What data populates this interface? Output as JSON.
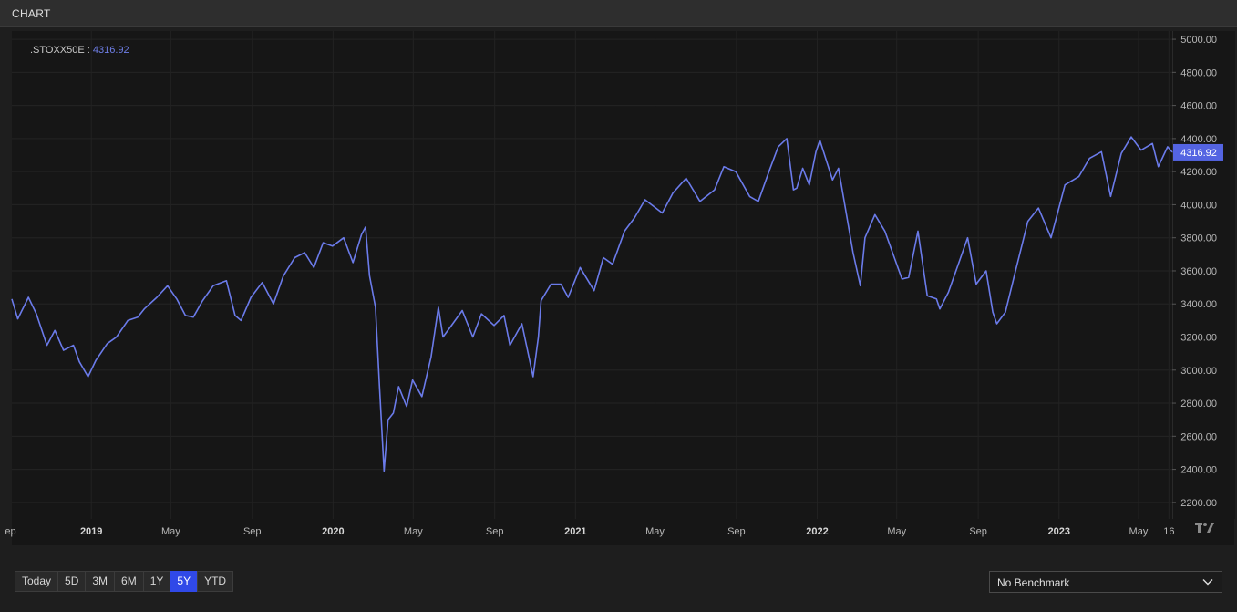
{
  "header": {
    "title": "CHART"
  },
  "legend": {
    "symbol": ".STOXX50E :",
    "value": "4316.92"
  },
  "last_price_label": "4316.92",
  "controls": {
    "ranges": [
      {
        "label": "Today",
        "active": false
      },
      {
        "label": "5D",
        "active": false
      },
      {
        "label": "3M",
        "active": false
      },
      {
        "label": "6M",
        "active": false
      },
      {
        "label": "1Y",
        "active": false
      },
      {
        "label": "5Y",
        "active": true
      },
      {
        "label": "YTD",
        "active": false
      }
    ],
    "benchmark": "No Benchmark"
  },
  "colors": {
    "line": "#6b7bea",
    "accent": "#3049e8",
    "price_tag": "#5464e2"
  },
  "icons": {
    "logo": "tradingview-logo-icon",
    "dropdown": "chevron-down-icon"
  },
  "chart_data": {
    "type": "line",
    "ylim": [
      2100,
      5050
    ],
    "yticks": [
      "5000.00",
      "4800.00",
      "4600.00",
      "4400.00",
      "4200.00",
      "4000.00",
      "3800.00",
      "3600.00",
      "3400.00",
      "3200.00",
      "3000.00",
      "2800.00",
      "2600.00",
      "2400.00",
      "2200.00"
    ],
    "x_range": [
      "2018-09-03",
      "2023-06-21"
    ],
    "xticks": [
      {
        "date": "2018-09-01",
        "label": "ep",
        "bold": false
      },
      {
        "date": "2019-01-01",
        "label": "2019",
        "bold": true
      },
      {
        "date": "2019-05-01",
        "label": "May",
        "bold": false
      },
      {
        "date": "2019-09-01",
        "label": "Sep",
        "bold": false
      },
      {
        "date": "2020-01-01",
        "label": "2020",
        "bold": true
      },
      {
        "date": "2020-05-01",
        "label": "May",
        "bold": false
      },
      {
        "date": "2020-09-01",
        "label": "Sep",
        "bold": false
      },
      {
        "date": "2021-01-01",
        "label": "2021",
        "bold": true
      },
      {
        "date": "2021-05-01",
        "label": "May",
        "bold": false
      },
      {
        "date": "2021-09-01",
        "label": "Sep",
        "bold": false
      },
      {
        "date": "2022-01-01",
        "label": "2022",
        "bold": true
      },
      {
        "date": "2022-05-01",
        "label": "May",
        "bold": false
      },
      {
        "date": "2022-09-01",
        "label": "Sep",
        "bold": false
      },
      {
        "date": "2023-01-01",
        "label": "2023",
        "bold": true
      },
      {
        "date": "2023-05-01",
        "label": "May",
        "bold": false
      },
      {
        "date": "2023-06-16",
        "label": "16",
        "bold": false
      }
    ],
    "series": [
      {
        "points": [
          [
            "2018-09-03",
            3430
          ],
          [
            "2018-09-12",
            3310
          ],
          [
            "2018-09-28",
            3440
          ],
          [
            "2018-10-10",
            3340
          ],
          [
            "2018-10-26",
            3150
          ],
          [
            "2018-11-07",
            3240
          ],
          [
            "2018-11-20",
            3120
          ],
          [
            "2018-12-05",
            3150
          ],
          [
            "2018-12-14",
            3050
          ],
          [
            "2018-12-27",
            2960
          ],
          [
            "2019-01-08",
            3060
          ],
          [
            "2019-01-25",
            3160
          ],
          [
            "2019-02-08",
            3200
          ],
          [
            "2019-02-25",
            3300
          ],
          [
            "2019-03-12",
            3320
          ],
          [
            "2019-03-22",
            3370
          ],
          [
            "2019-04-10",
            3440
          ],
          [
            "2019-04-26",
            3510
          ],
          [
            "2019-05-10",
            3430
          ],
          [
            "2019-05-23",
            3330
          ],
          [
            "2019-06-04",
            3320
          ],
          [
            "2019-06-18",
            3420
          ],
          [
            "2019-07-04",
            3510
          ],
          [
            "2019-07-24",
            3540
          ],
          [
            "2019-08-06",
            3330
          ],
          [
            "2019-08-15",
            3300
          ],
          [
            "2019-08-30",
            3440
          ],
          [
            "2019-09-16",
            3530
          ],
          [
            "2019-10-03",
            3400
          ],
          [
            "2019-10-18",
            3570
          ],
          [
            "2019-11-04",
            3680
          ],
          [
            "2019-11-19",
            3710
          ],
          [
            "2019-12-03",
            3620
          ],
          [
            "2019-12-17",
            3770
          ],
          [
            "2019-12-31",
            3750
          ],
          [
            "2020-01-17",
            3800
          ],
          [
            "2020-01-31",
            3650
          ],
          [
            "2020-02-13",
            3820
          ],
          [
            "2020-02-19",
            3865
          ],
          [
            "2020-02-25",
            3570
          ],
          [
            "2020-03-05",
            3380
          ],
          [
            "2020-03-11",
            2900
          ],
          [
            "2020-03-18",
            2390
          ],
          [
            "2020-03-24",
            2700
          ],
          [
            "2020-04-01",
            2740
          ],
          [
            "2020-04-09",
            2900
          ],
          [
            "2020-04-21",
            2780
          ],
          [
            "2020-04-30",
            2940
          ],
          [
            "2020-05-14",
            2840
          ],
          [
            "2020-05-28",
            3080
          ],
          [
            "2020-06-08",
            3380
          ],
          [
            "2020-06-15",
            3200
          ],
          [
            "2020-06-26",
            3260
          ],
          [
            "2020-07-14",
            3360
          ],
          [
            "2020-07-30",
            3200
          ],
          [
            "2020-08-12",
            3340
          ],
          [
            "2020-08-31",
            3270
          ],
          [
            "2020-09-15",
            3330
          ],
          [
            "2020-09-24",
            3150
          ],
          [
            "2020-10-12",
            3280
          ],
          [
            "2020-10-29",
            2960
          ],
          [
            "2020-11-06",
            3200
          ],
          [
            "2020-11-10",
            3420
          ],
          [
            "2020-11-25",
            3520
          ],
          [
            "2020-12-10",
            3520
          ],
          [
            "2020-12-21",
            3440
          ],
          [
            "2021-01-08",
            3620
          ],
          [
            "2021-01-29",
            3480
          ],
          [
            "2021-02-12",
            3680
          ],
          [
            "2021-02-26",
            3640
          ],
          [
            "2021-03-16",
            3840
          ],
          [
            "2021-03-31",
            3920
          ],
          [
            "2021-04-16",
            4030
          ],
          [
            "2021-05-12",
            3950
          ],
          [
            "2021-05-28",
            4070
          ],
          [
            "2021-06-17",
            4160
          ],
          [
            "2021-07-08",
            4020
          ],
          [
            "2021-07-30",
            4090
          ],
          [
            "2021-08-13",
            4230
          ],
          [
            "2021-08-31",
            4200
          ],
          [
            "2021-09-21",
            4050
          ],
          [
            "2021-10-04",
            4020
          ],
          [
            "2021-10-21",
            4210
          ],
          [
            "2021-11-03",
            4350
          ],
          [
            "2021-11-16",
            4400
          ],
          [
            "2021-11-26",
            4090
          ],
          [
            "2021-12-01",
            4100
          ],
          [
            "2021-12-10",
            4220
          ],
          [
            "2021-12-20",
            4120
          ],
          [
            "2021-12-30",
            4320
          ],
          [
            "2022-01-05",
            4390
          ],
          [
            "2022-01-24",
            4150
          ],
          [
            "2022-02-02",
            4220
          ],
          [
            "2022-02-24",
            3710
          ],
          [
            "2022-03-07",
            3510
          ],
          [
            "2022-03-14",
            3800
          ],
          [
            "2022-03-29",
            3940
          ],
          [
            "2022-04-13",
            3840
          ],
          [
            "2022-05-09",
            3550
          ],
          [
            "2022-05-19",
            3560
          ],
          [
            "2022-06-02",
            3840
          ],
          [
            "2022-06-16",
            3450
          ],
          [
            "2022-06-30",
            3430
          ],
          [
            "2022-07-05",
            3370
          ],
          [
            "2022-07-18",
            3470
          ],
          [
            "2022-08-16",
            3800
          ],
          [
            "2022-08-29",
            3520
          ],
          [
            "2022-09-13",
            3600
          ],
          [
            "2022-09-23",
            3350
          ],
          [
            "2022-09-29",
            3280
          ],
          [
            "2022-10-12",
            3350
          ],
          [
            "2022-10-28",
            3610
          ],
          [
            "2022-11-15",
            3900
          ],
          [
            "2022-12-01",
            3980
          ],
          [
            "2022-12-20",
            3800
          ],
          [
            "2023-01-10",
            4120
          ],
          [
            "2023-01-31",
            4170
          ],
          [
            "2023-02-16",
            4280
          ],
          [
            "2023-03-06",
            4320
          ],
          [
            "2023-03-20",
            4050
          ],
          [
            "2023-04-05",
            4310
          ],
          [
            "2023-04-20",
            4410
          ],
          [
            "2023-05-05",
            4330
          ],
          [
            "2023-05-22",
            4370
          ],
          [
            "2023-05-31",
            4230
          ],
          [
            "2023-06-14",
            4350
          ],
          [
            "2023-06-21",
            4316.92
          ]
        ]
      }
    ]
  }
}
